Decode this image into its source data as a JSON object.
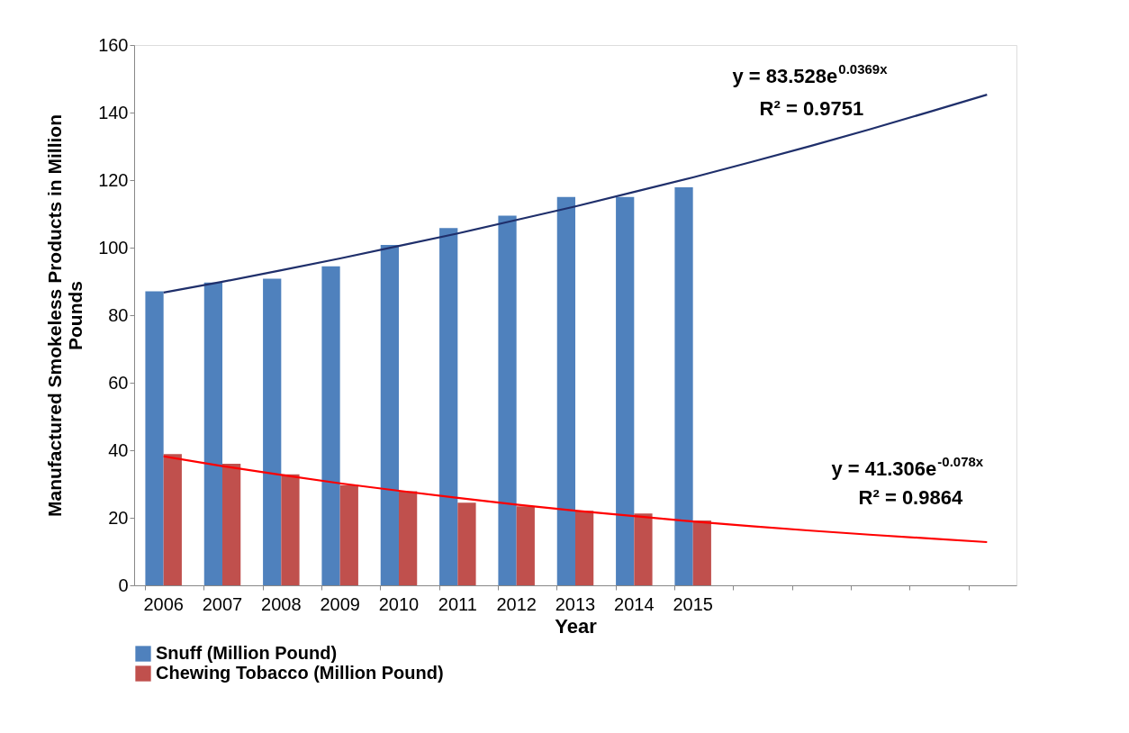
{
  "chart_data": {
    "type": "bar",
    "xlabel": "Year",
    "ylabel": "Manufactured Smokeless Products in  Million Pounds",
    "categories": [
      "2006",
      "2007",
      "2008",
      "2009",
      "2010",
      "2011",
      "2012",
      "2013",
      "2014",
      "2015",
      null,
      null,
      null,
      null,
      null
    ],
    "series": [
      {
        "name": "Snuff (Million Pound)",
        "color": "#4f81bd",
        "values": [
          87.1,
          89.7,
          90.8,
          94.5,
          100.8,
          105.8,
          109.5,
          115.0,
          115.0,
          117.9,
          null,
          null,
          null,
          null,
          null
        ]
      },
      {
        "name": "Chewing Tobacco (Million Pound)",
        "color": "#c0504d",
        "values": [
          38.9,
          36.0,
          32.9,
          29.7,
          27.9,
          24.5,
          23.4,
          22.1,
          21.3,
          19.2,
          null,
          null,
          null,
          null,
          null
        ]
      },
      {
        "type": "line",
        "color": "#1f2f6b",
        "values": [
          86.7,
          89.9,
          93.3,
          96.8,
          100.5,
          104.2,
          108.2,
          112.2,
          116.5,
          120.8,
          125.4,
          130.1,
          135.0,
          140.1,
          145.3
        ]
      },
      {
        "type": "line",
        "color": "#ff0000",
        "values": [
          38.2,
          35.3,
          32.7,
          30.2,
          28.0,
          25.9,
          23.9,
          22.1,
          20.5,
          18.9,
          17.5,
          16.2,
          15.0,
          13.9,
          12.8
        ]
      }
    ],
    "annotations": [
      "y = 83.528e$^{0.0369x}$",
      "R² = 0.9751",
      "y = 41.306e$^{-0.078x}$",
      "R² = 0.9864"
    ],
    "ylim": [
      0,
      160
    ],
    "yticks": [
      0,
      20,
      40,
      60,
      80,
      100,
      120,
      140,
      160
    ],
    "legend": "bottom",
    "grid": false
  }
}
